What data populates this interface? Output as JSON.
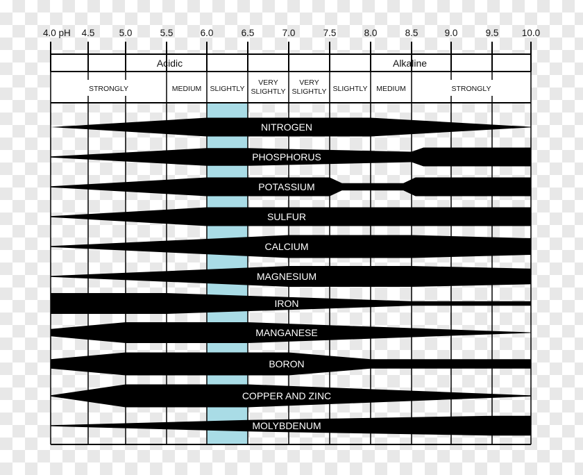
{
  "scale": {
    "ticks": [
      {
        "ph": 4.0,
        "label": "4.0 pH"
      },
      {
        "ph": 4.5,
        "label": "4.5"
      },
      {
        "ph": 5.0,
        "label": "5.0"
      },
      {
        "ph": 5.5,
        "label": "5.5"
      },
      {
        "ph": 6.0,
        "label": "6.0"
      },
      {
        "ph": 6.5,
        "label": "6.5"
      },
      {
        "ph": 7.0,
        "label": "7.0"
      },
      {
        "ph": 7.5,
        "label": "7.5"
      },
      {
        "ph": 8.0,
        "label": "8.0"
      },
      {
        "ph": 8.5,
        "label": "8.5"
      },
      {
        "ph": 9.0,
        "label": "9.0"
      },
      {
        "ph": 9.5,
        "label": "9.5"
      },
      {
        "ph": 10.0,
        "label": "10.0"
      }
    ]
  },
  "groups": [
    {
      "label": "Acidic",
      "from": 4.0,
      "to": 7.0
    },
    {
      "label": "Alkaline",
      "from": 7.0,
      "to": 10.0
    }
  ],
  "degrees": [
    {
      "lines": [
        "STRONGLY"
      ],
      "from": 4.0,
      "to": 5.5
    },
    {
      "lines": [
        "MEDIUM"
      ],
      "from": 5.5,
      "to": 6.0
    },
    {
      "lines": [
        "SLIGHTLY"
      ],
      "from": 6.0,
      "to": 6.5
    },
    {
      "lines": [
        "VERY",
        "SLIGHTLY"
      ],
      "from": 6.5,
      "to": 7.0
    },
    {
      "lines": [
        "VERY",
        "SLIGHTLY"
      ],
      "from": 7.0,
      "to": 7.5
    },
    {
      "lines": [
        "SLIGHTLY"
      ],
      "from": 7.5,
      "to": 8.0
    },
    {
      "lines": [
        "MEDIUM"
      ],
      "from": 8.0,
      "to": 8.5
    },
    {
      "lines": [
        "STRONGLY"
      ],
      "from": 8.5,
      "to": 10.0
    }
  ],
  "optimal_range": {
    "from": 6.0,
    "to": 6.5,
    "color": "#a9dce6"
  },
  "band_color": "#000000",
  "nutrients": [
    {
      "name": "NITROGEN",
      "availability": [
        [
          4.0,
          0
        ],
        [
          6.0,
          0.9
        ],
        [
          8.0,
          0.9
        ],
        [
          10.0,
          0.03
        ]
      ]
    },
    {
      "name": "PHOSPHORUS",
      "availability": [
        [
          4.0,
          0.05
        ],
        [
          6.0,
          0.85
        ],
        [
          6.5,
          0.85
        ],
        [
          8.5,
          0.5
        ],
        [
          8.65,
          0.9
        ],
        [
          10.0,
          0.9
        ]
      ]
    },
    {
      "name": "POTASSIUM",
      "availability": [
        [
          4.0,
          0.05
        ],
        [
          6.0,
          0.9
        ],
        [
          7.5,
          0.9
        ],
        [
          7.65,
          0.35
        ],
        [
          8.4,
          0.35
        ],
        [
          8.55,
          0.9
        ],
        [
          10.0,
          0.9
        ]
      ]
    },
    {
      "name": "SULFUR",
      "availability": [
        [
          4.0,
          0.05
        ],
        [
          6.0,
          0.9
        ],
        [
          10.0,
          0.9
        ]
      ]
    },
    {
      "name": "CALCIUM",
      "availability": [
        [
          4.0,
          0.05
        ],
        [
          7.0,
          1.1
        ],
        [
          8.5,
          1.1
        ],
        [
          10.0,
          0.8
        ]
      ]
    },
    {
      "name": "MAGNESIUM",
      "availability": [
        [
          4.0,
          0.05
        ],
        [
          7.0,
          1.0
        ],
        [
          8.5,
          1.0
        ],
        [
          10.0,
          0.75
        ]
      ]
    },
    {
      "name": "IRON",
      "availability": [
        [
          4.0,
          1.0
        ],
        [
          5.5,
          1.0
        ],
        [
          8.5,
          0.22
        ],
        [
          10.0,
          0.22
        ]
      ]
    },
    {
      "name": "MANGANESE",
      "availability": [
        [
          4.0,
          0.35
        ],
        [
          5.0,
          1.0
        ],
        [
          6.5,
          1.0
        ],
        [
          10.0,
          0.03
        ]
      ]
    },
    {
      "name": "BORON",
      "availability": [
        [
          4.0,
          0.45
        ],
        [
          5.0,
          1.1
        ],
        [
          7.0,
          1.1
        ],
        [
          8.0,
          0.45
        ],
        [
          10.0,
          0.45
        ]
      ]
    },
    {
      "name": "COPPER AND ZINC",
      "availability": [
        [
          4.0,
          0.05
        ],
        [
          5.0,
          1.1
        ],
        [
          6.5,
          1.1
        ],
        [
          10.0,
          0.05
        ]
      ]
    },
    {
      "name": "MOLYBDENUM",
      "availability": [
        [
          4.0,
          0.05
        ],
        [
          6.5,
          0.55
        ],
        [
          9.5,
          0.95
        ],
        [
          10.0,
          0.95
        ]
      ]
    }
  ]
}
